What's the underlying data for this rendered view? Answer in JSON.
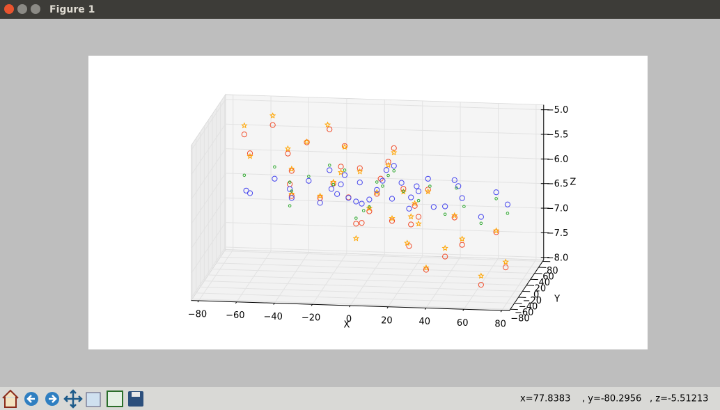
{
  "window": {
    "title": "Figure 1"
  },
  "status": {
    "x": "x=77.8383",
    "y": ", y=-80.2956",
    "z": ", z=-5.51213"
  },
  "chart_data": {
    "type": "scatter3d",
    "xlabel": "X",
    "ylabel": "Y",
    "zlabel": "Z",
    "xlim": [
      -84,
      84
    ],
    "ylim": [
      -85,
      85
    ],
    "zlim": [
      -8.05,
      -4.9
    ],
    "xticks": [
      {
        "value": -80,
        "label": "−80"
      },
      {
        "value": -60,
        "label": "−60"
      },
      {
        "value": -40,
        "label": "−40"
      },
      {
        "value": -20,
        "label": "−20"
      },
      0,
      20,
      40,
      60,
      80
    ],
    "yticks": [
      {
        "value": -80,
        "label": "−80"
      },
      {
        "value": -60,
        "label": "−60"
      },
      {
        "value": -40,
        "label": "−40"
      },
      {
        "value": -20,
        "label": "−20"
      },
      0,
      20,
      40,
      60,
      80
    ],
    "zticks": [
      {
        "value": -8,
        "label": "−8.0"
      },
      {
        "value": -7.5,
        "label": "−7.5"
      },
      {
        "value": -7,
        "label": "−7.0"
      },
      {
        "value": -6.5,
        "label": "−6.5"
      },
      {
        "value": -6,
        "label": "−6.0"
      },
      {
        "value": -5.5,
        "label": "−5.5"
      },
      {
        "value": -5,
        "label": "−5.0"
      }
    ],
    "grid": true,
    "series": [
      {
        "color": "#f04a28",
        "marker": "o",
        "x": [
          -65,
          -50,
          -62,
          -20,
          -42,
          -32,
          -12,
          -40,
          -41,
          -14,
          -4,
          14,
          11,
          -18,
          -25,
          7,
          5,
          19,
          -6,
          -3,
          1,
          13,
          23,
          27,
          25,
          32,
          46,
          22,
          41,
          31,
          50,
          60,
          68,
          73,
          -40,
          -10
        ],
        "y": [
          0,
          0,
          0,
          0,
          0,
          0,
          0,
          0,
          0,
          0,
          0,
          0,
          0,
          0,
          0,
          0,
          0,
          0,
          0,
          0,
          0,
          0,
          0,
          0,
          0,
          0,
          0,
          0,
          0,
          0,
          0,
          0,
          0,
          0,
          0,
          0
        ],
        "z": [
          -5.17,
          -4.96,
          -5.55,
          -5.01,
          -5.53,
          -5.29,
          -5.34,
          -5.88,
          -6.15,
          -5.76,
          -5.78,
          -5.35,
          -5.63,
          -6.11,
          -6.41,
          -5.98,
          -6.29,
          -6.17,
          -6.91,
          -6.89,
          -6.65,
          -6.83,
          -6.89,
          -6.73,
          -6.51,
          -6.17,
          -6.72,
          -7.33,
          -7.52,
          -7.8,
          -7.27,
          -8.07,
          -6.99,
          -7.7,
          -6.39,
          -6.38
        ]
      },
      {
        "color": "#ffa500",
        "marker": "*",
        "x": [
          -65,
          -50,
          -62,
          -21,
          -42,
          -32,
          -12,
          -40,
          -14,
          -4,
          14,
          11,
          -18,
          -25,
          5,
          19,
          -6,
          1,
          13,
          23,
          27,
          25,
          32,
          46,
          21,
          41,
          31,
          50,
          60,
          68,
          73,
          -40
        ],
        "y": [
          0,
          0,
          0,
          0,
          0,
          0,
          0,
          0,
          0,
          0,
          0,
          0,
          0,
          0,
          0,
          0,
          0,
          0,
          0,
          0,
          0,
          0,
          0,
          0,
          0,
          0,
          0,
          0,
          0,
          0,
          0,
          0
        ],
        "z": [
          -4.99,
          -4.77,
          -5.61,
          -4.92,
          -5.43,
          -5.28,
          -5.36,
          -5.84,
          -5.88,
          -5.85,
          -5.44,
          -5.7,
          -6.08,
          -6.37,
          -6.26,
          -6.23,
          -7.21,
          -6.59,
          -6.78,
          -6.73,
          -6.87,
          -6.46,
          -6.21,
          -6.68,
          -7.27,
          -7.35,
          -7.76,
          -7.15,
          -7.89,
          -6.96,
          -7.59,
          -6.35
        ]
      },
      {
        "color": "#4444ee",
        "marker": "o",
        "x": [
          -64,
          -62,
          -49,
          -41,
          -40,
          -31,
          -25,
          -20,
          -19,
          -14,
          -12,
          -4,
          -10,
          -6,
          -3,
          1,
          5,
          8,
          14,
          18,
          13,
          22,
          23,
          26,
          27,
          32,
          41,
          46,
          48,
          50,
          60,
          68,
          74,
          10,
          35,
          -16
        ],
        "y": [
          0,
          0,
          0,
          0,
          0,
          0,
          0,
          0,
          0,
          0,
          0,
          0,
          0,
          0,
          0,
          0,
          0,
          0,
          0,
          0,
          0,
          0,
          0,
          0,
          0,
          0,
          0,
          0,
          0,
          0,
          0,
          0,
          0,
          0,
          0,
          0
        ],
        "z": [
          -6.31,
          -6.36,
          -6.05,
          -6.25,
          -6.43,
          -6.07,
          -6.51,
          -5.84,
          -6.22,
          -6.12,
          -5.93,
          -6.07,
          -6.39,
          -6.46,
          -6.5,
          -6.41,
          -6.21,
          -6.02,
          -5.71,
          -6.05,
          -6.38,
          -6.57,
          -6.34,
          -6.11,
          -6.21,
          -5.95,
          -6.5,
          -5.96,
          -6.08,
          -6.32,
          -6.69,
          -6.18,
          -6.42,
          -5.8,
          -6.52,
          -6.32
        ]
      },
      {
        "color": "#33aa33",
        "marker": ".",
        "x": [
          -65,
          -49,
          -41,
          -40,
          -41,
          -31,
          -20,
          -18,
          -12,
          -6,
          -2,
          1,
          5,
          8,
          11,
          14,
          19,
          27,
          33,
          41,
          47,
          51,
          60,
          68,
          74
        ],
        "y": [
          0,
          0,
          0,
          0,
          0,
          0,
          0,
          0,
          0,
          0,
          0,
          0,
          0,
          0,
          0,
          0,
          0,
          0,
          0,
          0,
          0,
          0,
          0,
          0,
          0
        ],
        "z": [
          -6.0,
          -5.81,
          -6.11,
          -6.29,
          -6.59,
          -5.98,
          -5.74,
          -6.13,
          -5.83,
          -6.8,
          -6.64,
          -6.56,
          -6.05,
          -6.13,
          -5.91,
          -5.81,
          -6.22,
          -6.4,
          -6.1,
          -6.66,
          -6.12,
          -6.49,
          -6.82,
          -6.31,
          -6.6
        ]
      }
    ]
  }
}
